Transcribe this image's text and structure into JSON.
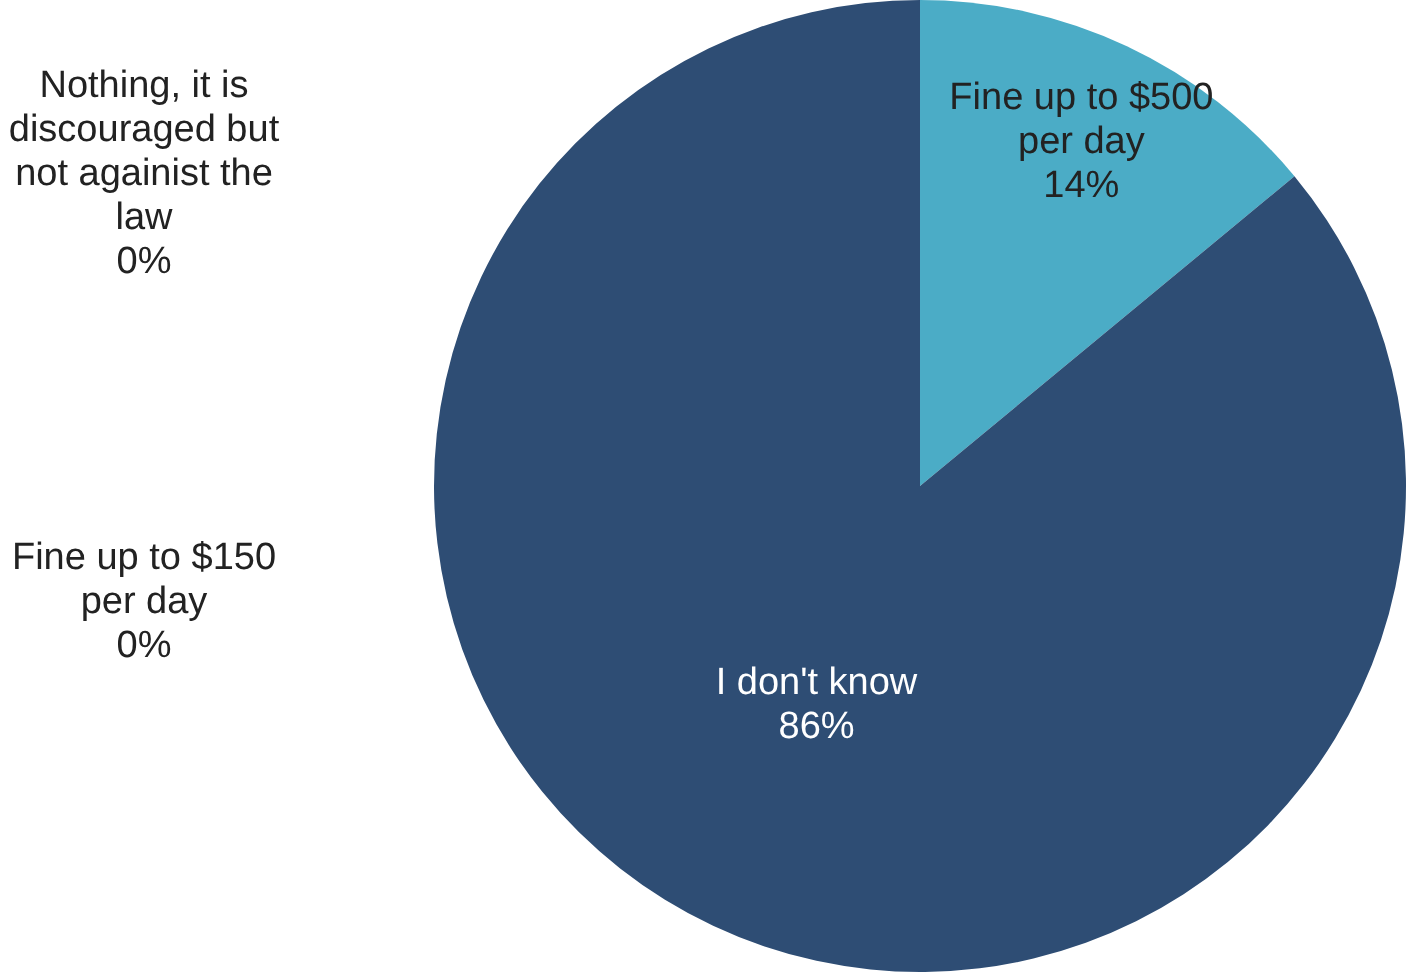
{
  "chart_data": {
    "type": "pie",
    "categories": [
      "Fine up to $500 per day",
      "I don't know",
      "Fine up to $150 per day",
      "Nothing, it is discouraged but not againist the law"
    ],
    "values": [
      14,
      86,
      0,
      0
    ],
    "colors": [
      "#4bacc6",
      "#2e4d74",
      "#a5a5a5",
      "#f79646"
    ],
    "value_labels": [
      "14%",
      "86%",
      "0%",
      "0%"
    ]
  }
}
